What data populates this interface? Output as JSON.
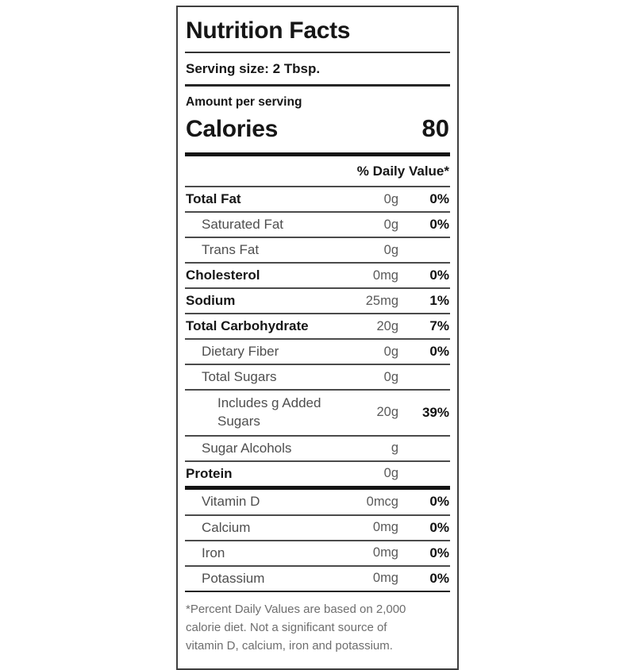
{
  "label": {
    "title": "Nutrition Facts",
    "serving_size": "Serving size: 2 Tbsp.",
    "amount_per_serving": "Amount per serving",
    "calories_label": "Calories",
    "calories_value": "80",
    "daily_value_header": "% Daily Value*",
    "colors": {
      "border": "#3f3f3f",
      "bold_text": "#161616",
      "muted_text": "#4e4e4e",
      "amount_text": "#5a5a5a",
      "footnote_text": "#6e6e6e",
      "thick_bar": "#141414"
    },
    "rows": [
      {
        "label": "Total Fat",
        "amount": "0g",
        "pct": "0%"
      },
      {
        "label": "Saturated Fat",
        "amount": "0g",
        "pct": "0%"
      },
      {
        "label": "Trans Fat",
        "amount": "0g",
        "pct": ""
      },
      {
        "label": "Cholesterol",
        "amount": "0mg",
        "pct": "0%"
      },
      {
        "label": "Sodium",
        "amount": "25mg",
        "pct": "1%"
      },
      {
        "label": "Total Carbohydrate",
        "amount": "20g",
        "pct": "7%"
      },
      {
        "label": "Dietary Fiber",
        "amount": "0g",
        "pct": "0%"
      },
      {
        "label": "Total Sugars",
        "amount": "0g",
        "pct": ""
      },
      {
        "label": "Includes g Added Sugars",
        "amount": "20g",
        "pct": "39%"
      },
      {
        "label": "Sugar Alcohols",
        "amount": "g",
        "pct": ""
      },
      {
        "label": "Protein",
        "amount": "0g",
        "pct": ""
      },
      {
        "label": "Vitamin D",
        "amount": "0mcg",
        "pct": "0%"
      },
      {
        "label": "Calcium",
        "amount": "0mg",
        "pct": "0%"
      },
      {
        "label": "Iron",
        "amount": "0mg",
        "pct": "0%"
      },
      {
        "label": "Potassium",
        "amount": "0mg",
        "pct": "0%"
      }
    ],
    "footnote_lines": [
      "*Percent Daily Values are based on 2,000",
      "calorie diet. Not a significant source of",
      "vitamin D, calcium, iron and potassium."
    ]
  }
}
